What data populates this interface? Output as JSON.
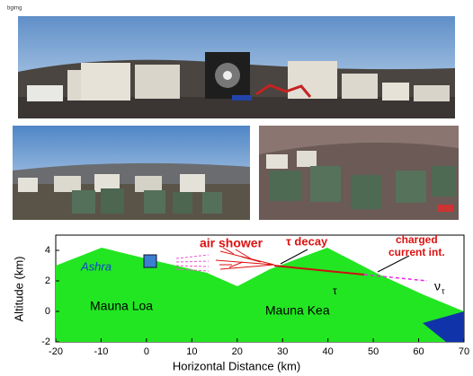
{
  "header": {
    "label": "bgimg"
  },
  "diagram": {
    "x_label": "Horizontal Distance (km)",
    "y_label": "Altitude (km)",
    "xlim": [
      -20,
      70
    ],
    "ylim": [
      -2,
      5
    ],
    "xticks": [
      -20,
      -10,
      0,
      10,
      20,
      30,
      40,
      50,
      60,
      70
    ],
    "yticks": [
      -2,
      0,
      2,
      4
    ],
    "labels": {
      "ashra": "Ashra",
      "mauna_loa": "Mauna Loa",
      "mauna_kea": "Mauna Kea",
      "air_shower": "air shower",
      "tau_decay": "τ decay",
      "charged_current": [
        "charged",
        "current int."
      ],
      "tau": "τ",
      "nu": "ν",
      "nu_sub": "τ"
    }
  }
}
